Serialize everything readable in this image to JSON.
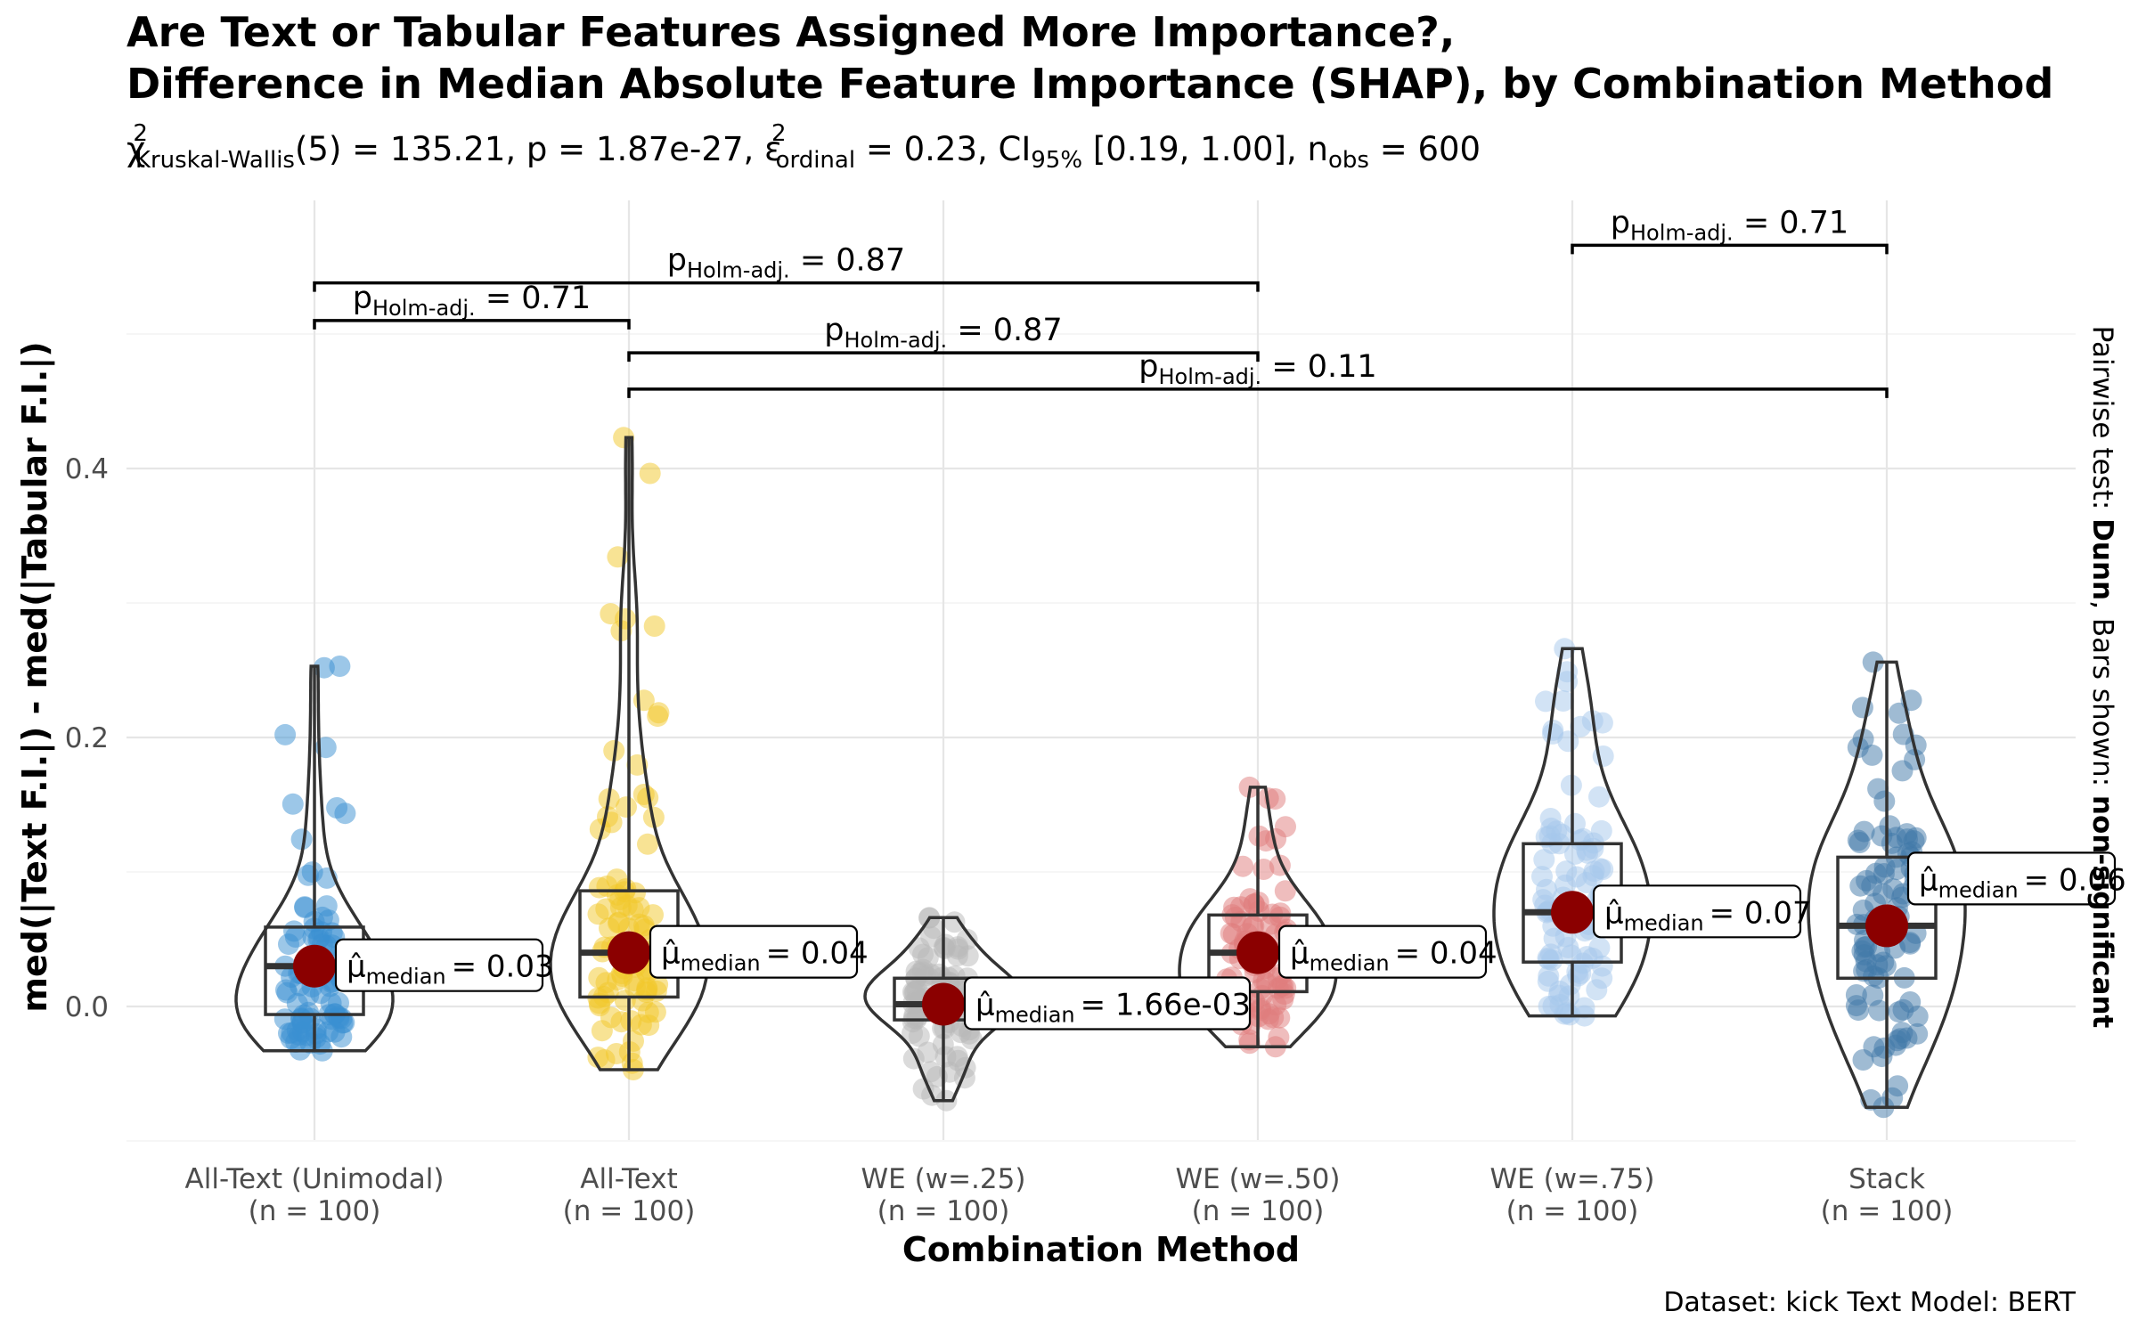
{
  "title_line1": "Are Text or Tabular Features Assigned More Importance?,",
  "title_line2": "Difference in Median Absolute Feature Importance (SHAP), by Combination Method",
  "subtitle": {
    "chi": "χ",
    "chi_sup": "2",
    "chi_sub": "Kruskal-Wallis",
    "stat": "(5) = 135.21, p = 1.87e-27, ε",
    "eps_sup": "2",
    "eps_sub": "ordinal",
    "effect": " = 0.23, CI",
    "ci_sub": "95%",
    "ci": " [0.19, 1.00], n",
    "n_sub": "obs",
    "n": " = 600"
  },
  "ylabel": "med(|Text F.I.|) - med(|Tabular F.I.|)",
  "xlabel": "Combination Method",
  "caption": "Dataset:  kick Text Model:  BERT",
  "side_label": {
    "part1": "Pairwise test: ",
    "part2": "Dunn",
    "part3": ", Bars shown: ",
    "part4": "non-significant"
  },
  "chart_data": {
    "type": "violin",
    "ylim": [
      -0.1,
      0.52
    ],
    "yticks": [
      0.0,
      0.2,
      0.4
    ],
    "ytick_labels": [
      "0.0",
      "0.2",
      "0.4"
    ],
    "grid": true,
    "categories": [
      {
        "name": "All-Text (Unimodal)",
        "n": "(n = 100)",
        "color": "#3a8fd1",
        "median": 0.03,
        "median_label": "= 0.03",
        "q1": -0.006,
        "q3": 0.059,
        "whisker_lo": -0.033,
        "whisker_hi": 0.253
      },
      {
        "name": "All-Text",
        "n": "(n = 100)",
        "color": "#f2c72a",
        "median": 0.04,
        "median_label": "= 0.04",
        "q1": 0.007,
        "q3": 0.086,
        "whisker_lo": -0.047,
        "whisker_hi": 0.423
      },
      {
        "name": "WE (w=.25)",
        "n": "(n = 100)",
        "color": "#b8b8b8",
        "median": 0.00166,
        "median_label": "= 1.66e-03",
        "q1": -0.01,
        "q3": 0.021,
        "whisker_lo": -0.07,
        "whisker_hi": 0.066
      },
      {
        "name": "WE (w=.50)",
        "n": "(n = 100)",
        "color": "#e07b7b",
        "median": 0.04,
        "median_label": "= 0.04",
        "q1": 0.011,
        "q3": 0.068,
        "whisker_lo": -0.03,
        "whisker_hi": 0.163
      },
      {
        "name": "WE (w=.75)",
        "n": "(n = 100)",
        "color": "#a6c8ec",
        "median": 0.07,
        "median_label": "= 0.07",
        "q1": 0.033,
        "q3": 0.121,
        "whisker_lo": -0.007,
        "whisker_hi": 0.266
      },
      {
        "name": "Stack",
        "n": "(n = 100)",
        "color": "#3f77a8",
        "median": 0.06,
        "median_label": "= 0.06",
        "q1": 0.021,
        "q3": 0.111,
        "whisker_lo": -0.075,
        "whisker_hi": 0.256
      }
    ],
    "median_symbol": "μ̂",
    "median_sub": "median",
    "pairwise": [
      {
        "from": 0,
        "to": 1,
        "y": 0.51,
        "label_prefix": "p",
        "label_sub": "Holm-adj.",
        "label_value": " = 0.71"
      },
      {
        "from": 0,
        "to": 3,
        "y": 0.538,
        "label_prefix": "p",
        "label_sub": "Holm-adj.",
        "label_value": " = 0.87"
      },
      {
        "from": 1,
        "to": 3,
        "y": 0.486,
        "label_prefix": "p",
        "label_sub": "Holm-adj.",
        "label_value": " = 0.87"
      },
      {
        "from": 1,
        "to": 5,
        "y": 0.459,
        "label_prefix": "p",
        "label_sub": "Holm-adj.",
        "label_value": " = 0.11"
      },
      {
        "from": 4,
        "to": 5,
        "y": 0.566,
        "label_prefix": "p",
        "label_sub": "Holm-adj.",
        "label_value": " = 0.71"
      }
    ]
  }
}
